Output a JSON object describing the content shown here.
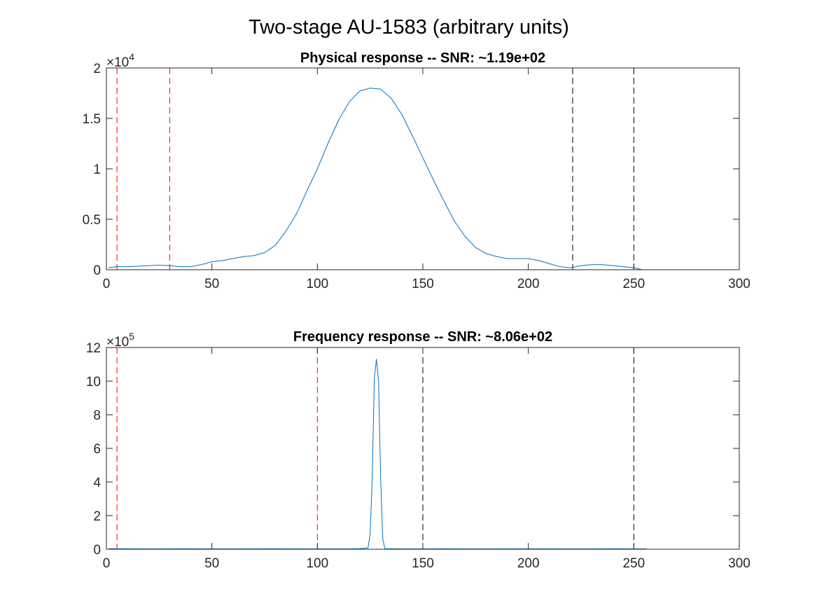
{
  "figure": {
    "suptitle": "Two-stage AU-1583 (arbitrary units)"
  },
  "chart_data": [
    {
      "type": "line",
      "title": "Physical response -- SNR: ~1.19e+02",
      "xlabel": "",
      "ylabel": "",
      "xlim": [
        0,
        300
      ],
      "ylim": [
        0,
        20000
      ],
      "xticks": [
        0,
        50,
        100,
        150,
        200,
        250,
        300
      ],
      "xtick_labels": [
        "0",
        "50",
        "100",
        "150",
        "200",
        "250",
        "300"
      ],
      "yticks": [
        0,
        5000,
        10000,
        15000,
        20000
      ],
      "ytick_labels": [
        "0",
        "0.5",
        "1",
        "1.5",
        "2"
      ],
      "y_exponent": {
        "base": "×10",
        "power": "4"
      },
      "grid": false,
      "series": [
        {
          "color": "#0072BD",
          "x": [
            1,
            5,
            10,
            15,
            20,
            25,
            30,
            35,
            40,
            45,
            50,
            55,
            60,
            65,
            70,
            75,
            80,
            85,
            90,
            95,
            100,
            105,
            110,
            115,
            120,
            125,
            130,
            135,
            140,
            145,
            150,
            155,
            160,
            165,
            170,
            175,
            180,
            185,
            190,
            195,
            200,
            205,
            210,
            215,
            220,
            225,
            230,
            235,
            240,
            245,
            250,
            254
          ],
          "y": [
            200,
            300,
            300,
            350,
            400,
            450,
            400,
            300,
            300,
            500,
            800,
            900,
            1100,
            1300,
            1400,
            1700,
            2400,
            3800,
            5500,
            7800,
            10000,
            12500,
            14800,
            16600,
            17700,
            18000,
            17900,
            17000,
            15400,
            13300,
            11100,
            8900,
            6800,
            4800,
            3300,
            2200,
            1600,
            1300,
            1100,
            1100,
            1100,
            900,
            600,
            300,
            200,
            400,
            500,
            500,
            400,
            300,
            200,
            0
          ]
        }
      ],
      "vlines": [
        {
          "x": 5,
          "color": "#ff0000"
        },
        {
          "x": 30,
          "color": "#ff0000"
        },
        {
          "x": 221,
          "color": "#000000"
        },
        {
          "x": 250,
          "color": "#000000"
        }
      ]
    },
    {
      "type": "line",
      "title": "Frequency response -- SNR: ~8.06e+02",
      "xlabel": "",
      "ylabel": "",
      "xlim": [
        0,
        300
      ],
      "ylim": [
        0,
        1200000
      ],
      "xticks": [
        0,
        50,
        100,
        150,
        200,
        250,
        300
      ],
      "xtick_labels": [
        "0",
        "50",
        "100",
        "150",
        "200",
        "250",
        "300"
      ],
      "yticks": [
        0,
        200000,
        400000,
        600000,
        800000,
        1000000,
        1200000
      ],
      "ytick_labels": [
        "0",
        "2",
        "4",
        "6",
        "8",
        "10",
        "12"
      ],
      "y_exponent": {
        "base": "×10",
        "power": "5"
      },
      "grid": false,
      "series": [
        {
          "color": "#0072BD",
          "x": [
            1,
            20,
            40,
            60,
            80,
            100,
            110,
            120,
            124,
            125,
            126,
            127,
            128,
            129,
            130,
            131,
            132,
            140,
            160,
            180,
            200,
            220,
            240,
            256
          ],
          "y": [
            3000,
            2000,
            2500,
            2000,
            2500,
            2000,
            2000,
            3000,
            8000,
            90000,
            420000,
            1020000,
            1130000,
            1000000,
            420000,
            60000,
            3000,
            2000,
            2500,
            2000,
            2500,
            2000,
            2500,
            2000
          ]
        }
      ],
      "vlines": [
        {
          "x": 5,
          "color": "#ff0000"
        },
        {
          "x": 100,
          "color": "#ff0000"
        },
        {
          "x": 150,
          "color": "#000000"
        },
        {
          "x": 250,
          "color": "#000000"
        }
      ]
    }
  ]
}
